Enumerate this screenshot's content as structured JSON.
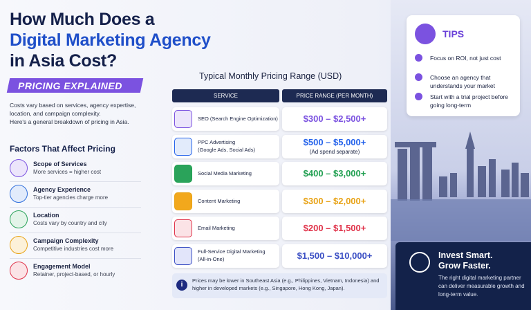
{
  "header": {
    "title_lines": [
      "How Much Does a",
      "Digital Marketing Agency",
      "in Asia Cost?"
    ],
    "badge": "PRICING EXPLAINED",
    "intro": [
      "Costs vary based on services, agency expertise, location, and campaign complexity.",
      "Here's a general breakdown of pricing in Asia."
    ]
  },
  "factors": {
    "heading": "Factors That Affect Pricing",
    "items": [
      {
        "title": "Scope of Services",
        "desc": "More services = higher cost"
      },
      {
        "title": "Agency Experience",
        "desc": "Top-tier agencies charge more"
      },
      {
        "title": "Location",
        "desc": "Costs vary by country and city"
      },
      {
        "title": "Campaign Complexity",
        "desc": "Competitive industries cost more"
      },
      {
        "title": "Engagement Model",
        "desc": "Retainer, project-based, or hourly"
      }
    ]
  },
  "table": {
    "title": "Typical Monthly Pricing Range (USD)",
    "headers": [
      "SERVICE",
      "PRICE RANGE (PER MONTH)"
    ],
    "rows": [
      {
        "service": "SEO (Search Engine Optimization)",
        "price": "$300 – $2,500+"
      },
      {
        "service": "PPC Advertising",
        "sub": "(Google Ads, Social Ads)",
        "price": "$500 – $5,000+",
        "note": "(Ad spend separate)"
      },
      {
        "service": "Social Media Marketing",
        "price": "$400 – $3,000+"
      },
      {
        "service": "Content Marketing",
        "price": "$300 – $2,000+"
      },
      {
        "service": "Email Marketing",
        "price": "$200 – $1,500+"
      },
      {
        "service": "Full-Service Digital Marketing",
        "sub": "(All-in-One)",
        "price": "$1,500 – $10,000+"
      }
    ],
    "note": "Prices may be lower in Southeast Asia (e.g., Philippines, Vietnam, Indonesia) and higher in developed markets (e.g., Singapore, Hong Kong, Japan)."
  },
  "tips": {
    "heading": "TIPS",
    "items": [
      "Focus on ROI, not just cost",
      "Choose an agency that understands your market",
      "Start with a trial project before going long-term"
    ]
  },
  "cta": {
    "lines": [
      "Invest Smart.",
      "Grow Faster."
    ],
    "body": "The right digital marketing partner can deliver measurable growth and long-term value."
  }
}
